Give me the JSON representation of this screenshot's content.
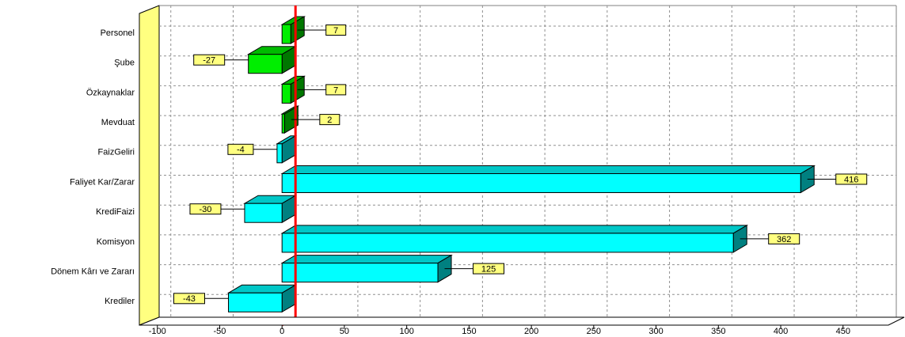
{
  "chart_data": {
    "type": "bar",
    "orientation": "horizontal",
    "style": "3d",
    "categories": [
      "Personel",
      "Şube",
      "Özkaynaklar",
      "Mevduat",
      "FaizGeliri",
      "Faliyet Kar/Zarar",
      "KrediFaizi",
      "Komisyon",
      "Dönem Kârı ve Zararı",
      "Krediler"
    ],
    "values": [
      7,
      -27,
      7,
      2,
      -4,
      416,
      -30,
      362,
      125,
      -43
    ],
    "colors": [
      "#00ee00",
      "#00ee00",
      "#00ee00",
      "#00ee00",
      "#00ffff",
      "#00ffff",
      "#00ffff",
      "#00ffff",
      "#00ffff",
      "#00ffff"
    ],
    "xlim": [
      -110,
      480
    ],
    "xticks": [
      -100,
      -50,
      0,
      50,
      100,
      150,
      200,
      250,
      300,
      350,
      400,
      450
    ],
    "title": "",
    "xlabel": "",
    "ylabel": "",
    "grid": true,
    "zero_line_color": "#ff0000",
    "wall_color": "#ffff80",
    "label_box_color": "#ffff80"
  }
}
